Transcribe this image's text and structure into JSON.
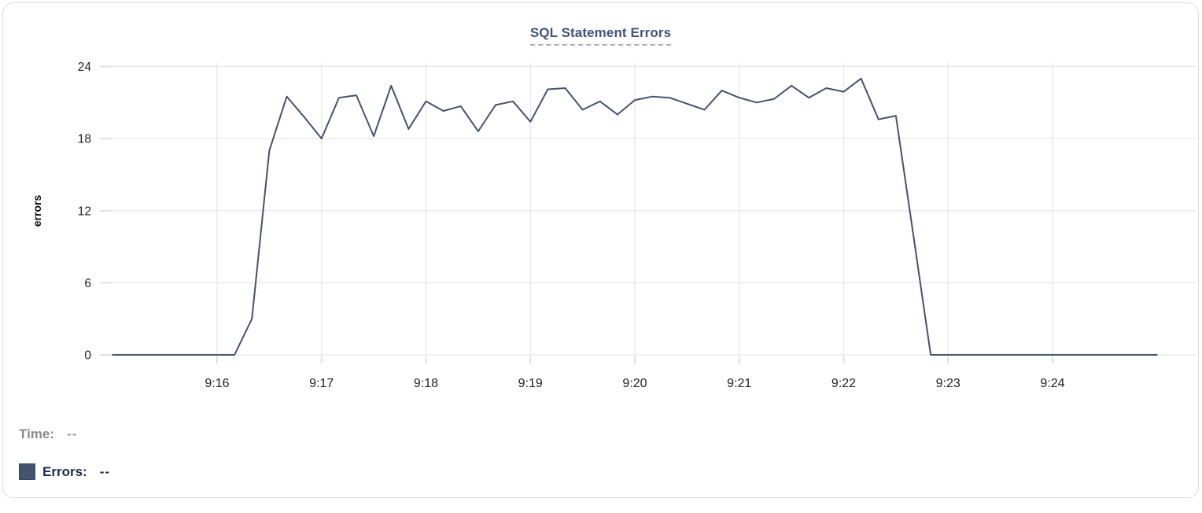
{
  "chart_data": {
    "type": "line",
    "title": "SQL Statement Errors",
    "xlabel": "",
    "ylabel": "errors",
    "y_ticks": [
      0,
      6,
      12,
      18,
      24
    ],
    "ylim": [
      0,
      24
    ],
    "x_tick_labels": [
      "9:16",
      "9:17",
      "9:18",
      "9:19",
      "9:20",
      "9:21",
      "9:22",
      "9:23",
      "9:24"
    ],
    "x_start": "9:15:00",
    "x_end": "9:25:00",
    "x_step_seconds": 10,
    "grid": true,
    "legend_position": "bottom-left",
    "series": [
      {
        "name": "Errors",
        "color": "#44536e",
        "values": [
          0,
          0,
          0,
          0,
          0,
          0,
          0,
          0,
          3,
          17,
          21.5,
          19.8,
          18,
          21.4,
          21.6,
          18.2,
          22.4,
          18.8,
          21.1,
          20.3,
          20.7,
          18.6,
          20.8,
          21.1,
          19.4,
          22.1,
          22.2,
          20.4,
          21.1,
          20.0,
          21.2,
          21.5,
          21.4,
          20.9,
          20.4,
          22.0,
          21.4,
          21.0,
          21.3,
          22.4,
          21.4,
          22.2,
          21.9,
          23.0,
          19.6,
          19.9,
          10.0,
          0,
          0,
          0,
          0,
          0,
          0,
          0,
          0,
          0,
          0,
          0,
          0,
          0,
          0
        ]
      }
    ]
  },
  "tooltip": {
    "time_label": "Time:",
    "time_value": "--",
    "errors_label": "Errors:",
    "errors_value": "--"
  },
  "colors": {
    "line": "#44536e",
    "title": "#42547a",
    "grid": "#e8e8e8",
    "tick_text": "#212121",
    "time_label_gray": "#8b8b8b",
    "errors_label_navy": "#1a2a52",
    "card_border": "#d9dce1"
  }
}
